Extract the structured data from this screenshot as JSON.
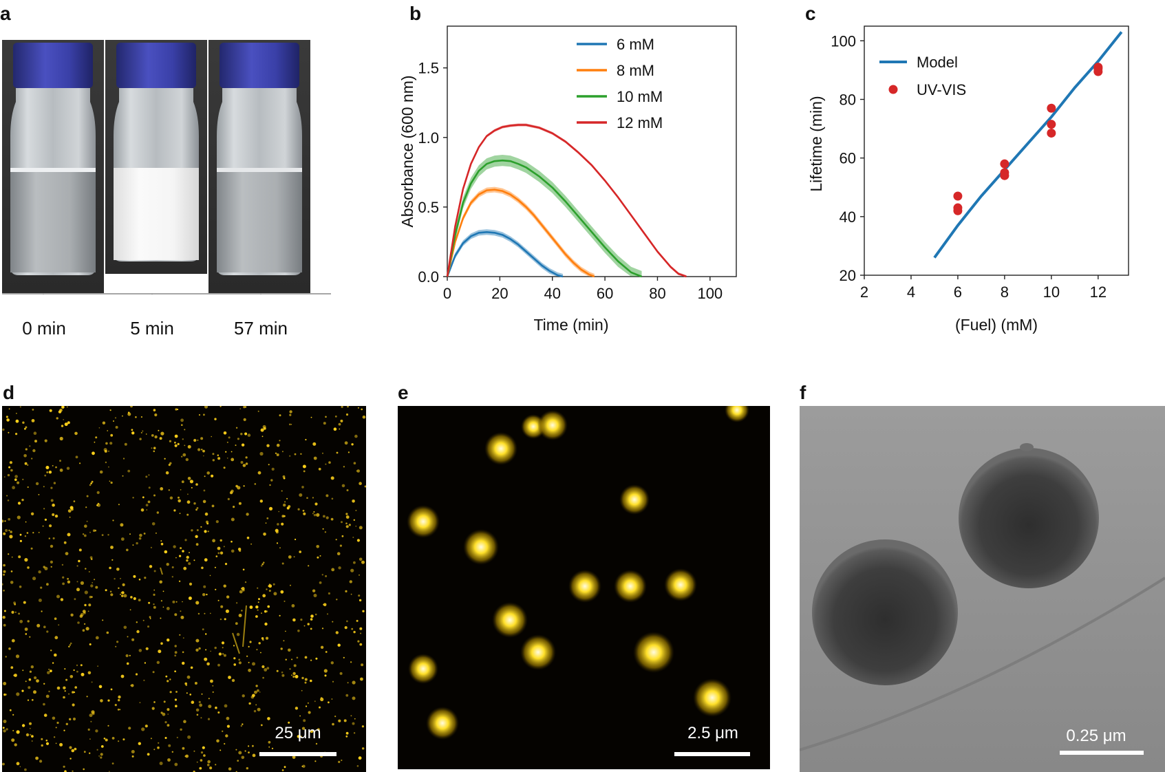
{
  "panels": {
    "a": {
      "letter": "a",
      "vials": [
        {
          "label": "0 min",
          "state": "clear"
        },
        {
          "label": "5 min",
          "state": "turbid"
        },
        {
          "label": "57 min",
          "state": "clear"
        }
      ]
    },
    "b": {
      "letter": "b"
    },
    "c": {
      "letter": "c"
    },
    "d": {
      "letter": "d",
      "scale": "25 μm"
    },
    "e": {
      "letter": "e",
      "scale": "2.5 μm"
    },
    "f": {
      "letter": "f",
      "scale": "0.25 μm"
    }
  },
  "colors": {
    "cap": "#3a3fa8",
    "s6": "#1f77b4",
    "s8": "#ff7f0e",
    "s10": "#2ca02c",
    "s12": "#d62728",
    "model": "#1f77b4",
    "uvvis": "#d62728",
    "fluor": "#ffd21a"
  },
  "chart_data": [
    {
      "type": "line",
      "panel": "b",
      "xlabel": "Time (min)",
      "ylabel": "Absorbance (600 nm)",
      "xlim": [
        0,
        110
      ],
      "ylim": [
        0,
        1.8
      ],
      "xticks": [
        0,
        20,
        40,
        60,
        80,
        100
      ],
      "yticks": [
        0.0,
        0.5,
        1.0,
        1.5
      ],
      "legend_position": "top-right",
      "series": [
        {
          "name": "6 mM",
          "color": "#1f77b4",
          "x": [
            0,
            3,
            6,
            9,
            12,
            15,
            18,
            21,
            24,
            27,
            30,
            33,
            36,
            39,
            42,
            44
          ],
          "y": [
            0,
            0.15,
            0.24,
            0.29,
            0.315,
            0.32,
            0.315,
            0.3,
            0.27,
            0.23,
            0.18,
            0.13,
            0.08,
            0.04,
            0.01,
            0
          ],
          "band": 0.02
        },
        {
          "name": "8 mM",
          "color": "#ff7f0e",
          "x": [
            0,
            3,
            6,
            9,
            12,
            15,
            18,
            21,
            24,
            27,
            30,
            33,
            36,
            39,
            42,
            45,
            48,
            51,
            54,
            56
          ],
          "y": [
            0,
            0.25,
            0.42,
            0.53,
            0.59,
            0.62,
            0.625,
            0.615,
            0.59,
            0.55,
            0.5,
            0.44,
            0.37,
            0.3,
            0.23,
            0.16,
            0.1,
            0.05,
            0.015,
            0
          ],
          "band": 0.02
        },
        {
          "name": "10 mM",
          "color": "#2ca02c",
          "x": [
            0,
            3,
            6,
            9,
            12,
            15,
            18,
            21,
            24,
            27,
            30,
            35,
            40,
            45,
            50,
            55,
            60,
            65,
            70,
            74
          ],
          "y": [
            0,
            0.3,
            0.53,
            0.67,
            0.76,
            0.81,
            0.83,
            0.835,
            0.83,
            0.81,
            0.785,
            0.72,
            0.64,
            0.54,
            0.43,
            0.32,
            0.21,
            0.11,
            0.03,
            0
          ],
          "band": 0.04
        },
        {
          "name": "12 mM",
          "color": "#d62728",
          "x": [
            0,
            3,
            6,
            9,
            12,
            15,
            18,
            21,
            24,
            27,
            30,
            35,
            40,
            45,
            50,
            55,
            60,
            65,
            70,
            75,
            80,
            85,
            88,
            91
          ],
          "y": [
            0,
            0.36,
            0.63,
            0.81,
            0.93,
            1.01,
            1.05,
            1.075,
            1.085,
            1.09,
            1.09,
            1.07,
            1.03,
            0.97,
            0.89,
            0.8,
            0.69,
            0.57,
            0.44,
            0.31,
            0.18,
            0.07,
            0.02,
            0
          ],
          "band": 0.01
        }
      ]
    },
    {
      "type": "scatter",
      "panel": "c",
      "xlabel": "(Fuel) (mM)",
      "ylabel": "Lifetime (min)",
      "xlim": [
        2,
        13.3
      ],
      "ylim": [
        20,
        105
      ],
      "xticks": [
        2,
        4,
        6,
        8,
        10,
        12
      ],
      "yticks": [
        20,
        40,
        60,
        80,
        100
      ],
      "legend_position": "top-left",
      "series": [
        {
          "name": "Model",
          "kind": "line",
          "color": "#1f77b4",
          "x": [
            5,
            6,
            7,
            8,
            9,
            10,
            11,
            12,
            13
          ],
          "y": [
            26,
            37,
            47,
            56,
            65,
            74,
            84,
            93,
            103
          ]
        },
        {
          "name": "UV-VIS",
          "kind": "points",
          "color": "#d62728",
          "x": [
            6,
            6,
            6,
            8,
            8,
            8,
            10,
            10,
            10,
            12,
            12,
            12
          ],
          "y": [
            47,
            43,
            42,
            58,
            55,
            54,
            77,
            71.5,
            68.5,
            91,
            90.5,
            89.5
          ]
        }
      ]
    }
  ]
}
